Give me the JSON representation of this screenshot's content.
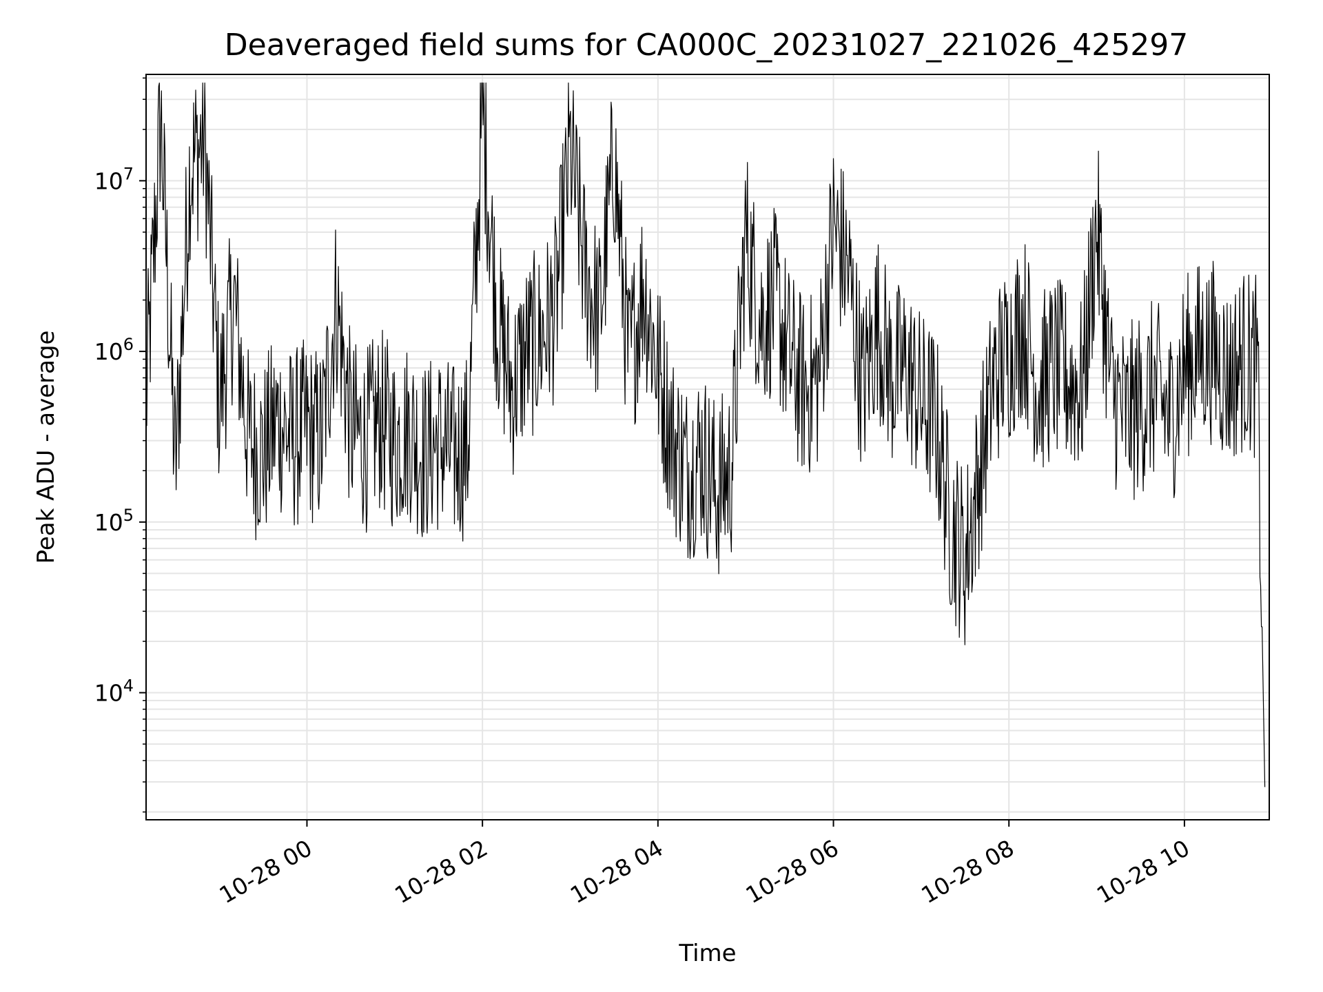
{
  "chart_data": {
    "type": "line",
    "title": "Deaveraged field sums for CA000C_20231027_221026_425297",
    "xlabel": "Time",
    "ylabel": "Peak ADU - average",
    "yscale": "log",
    "xlim": [
      "2023-10-27 22:10",
      "2023-10-28 10:58"
    ],
    "ylim": [
      1800,
      42000000
    ],
    "grid": true,
    "colors": {
      "line": "#000000",
      "grid": "#e5e5e5",
      "axes": "#000000"
    },
    "x_ticks": [
      {
        "t": "2023-10-28 00:00",
        "label": "10-28 00"
      },
      {
        "t": "2023-10-28 02:00",
        "label": "10-28 02"
      },
      {
        "t": "2023-10-28 04:00",
        "label": "10-28 04"
      },
      {
        "t": "2023-10-28 06:00",
        "label": "10-28 06"
      },
      {
        "t": "2023-10-28 08:00",
        "label": "10-28 08"
      },
      {
        "t": "2023-10-28 10:00",
        "label": "10-28 10"
      }
    ],
    "y_ticks": [
      {
        "value": 10000,
        "base": "10",
        "exp": "4"
      },
      {
        "value": 100000,
        "base": "10",
        "exp": "5"
      },
      {
        "value": 1000000,
        "base": "10",
        "exp": "6"
      },
      {
        "value": 10000000,
        "base": "10",
        "exp": "7"
      }
    ],
    "series": [
      {
        "x": [
          "2023-10-27 22:10",
          "2023-10-27 22:20",
          "2023-10-27 22:30",
          "2023-10-27 22:40",
          "2023-10-27 22:50",
          "2023-10-27 23:00",
          "2023-10-27 23:10",
          "2023-10-27 23:20",
          "2023-10-27 23:30",
          "2023-10-27 23:40",
          "2023-10-27 23:50",
          "2023-10-28 00:00",
          "2023-10-28 00:10",
          "2023-10-28 00:20",
          "2023-10-28 00:30",
          "2023-10-28 00:40",
          "2023-10-28 00:50",
          "2023-10-28 01:00",
          "2023-10-28 01:10",
          "2023-10-28 01:20",
          "2023-10-28 01:30",
          "2023-10-28 01:40",
          "2023-10-28 01:50",
          "2023-10-28 02:00",
          "2023-10-28 02:10",
          "2023-10-28 02:20",
          "2023-10-28 02:30",
          "2023-10-28 02:40",
          "2023-10-28 02:50",
          "2023-10-28 03:00",
          "2023-10-28 03:10",
          "2023-10-28 03:20",
          "2023-10-28 03:30",
          "2023-10-28 03:40",
          "2023-10-28 03:50",
          "2023-10-28 04:00",
          "2023-10-28 04:10",
          "2023-10-28 04:20",
          "2023-10-28 04:30",
          "2023-10-28 04:40",
          "2023-10-28 04:50",
          "2023-10-28 05:00",
          "2023-10-28 05:10",
          "2023-10-28 05:20",
          "2023-10-28 05:30",
          "2023-10-28 05:40",
          "2023-10-28 05:50",
          "2023-10-28 06:00",
          "2023-10-28 06:10",
          "2023-10-28 06:20",
          "2023-10-28 06:30",
          "2023-10-28 06:40",
          "2023-10-28 06:50",
          "2023-10-28 07:00",
          "2023-10-28 07:10",
          "2023-10-28 07:20",
          "2023-10-28 07:30",
          "2023-10-28 07:40",
          "2023-10-28 07:50",
          "2023-10-28 08:00",
          "2023-10-28 08:10",
          "2023-10-28 08:20",
          "2023-10-28 08:30",
          "2023-10-28 08:40",
          "2023-10-28 08:50",
          "2023-10-28 09:00",
          "2023-10-28 09:10",
          "2023-10-28 09:20",
          "2023-10-28 09:30",
          "2023-10-28 09:40",
          "2023-10-28 09:50",
          "2023-10-28 10:00",
          "2023-10-28 10:10",
          "2023-10-28 10:20",
          "2023-10-28 10:30",
          "2023-10-28 10:40",
          "2023-10-28 10:50",
          "2023-10-28 10:55"
        ],
        "y": [
          500000,
          24000000,
          200000,
          12000000,
          18000000,
          500000,
          2000000,
          300000,
          250000,
          400000,
          300000,
          350000,
          300000,
          2000000,
          350000,
          300000,
          400000,
          300000,
          350000,
          250000,
          300000,
          250000,
          280000,
          27000000,
          1500000,
          600000,
          1000000,
          1200000,
          1800000,
          15000000,
          3000000,
          1500000,
          14000000,
          800000,
          2500000,
          800000,
          300000,
          200000,
          250000,
          150000,
          200000,
          5000000,
          1500000,
          2000000,
          900000,
          600000,
          700000,
          5500000,
          3000000,
          600000,
          1500000,
          700000,
          800000,
          500000,
          400000,
          100000,
          60000,
          200000,
          700000,
          1000000,
          1500000,
          600000,
          800000,
          700000,
          600000,
          5500000,
          600000,
          400000,
          500000,
          600000,
          400000,
          800000,
          1000000,
          1000000,
          700000,
          900000,
          800000,
          2800
        ]
      }
    ]
  }
}
